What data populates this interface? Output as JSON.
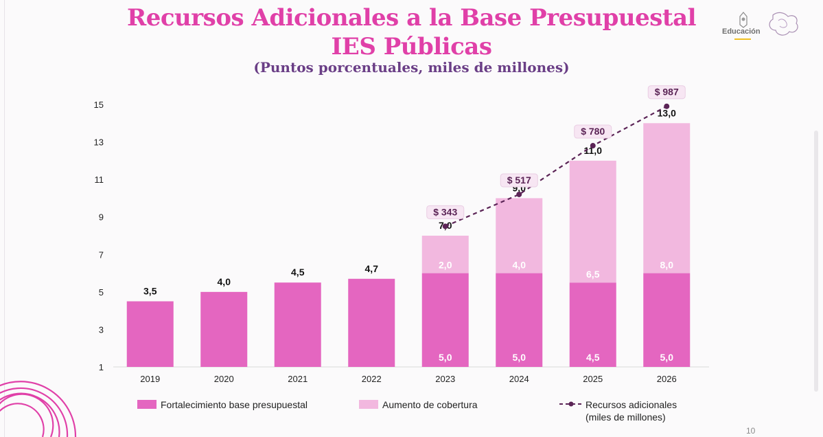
{
  "slide": {
    "title_line1": "Recursos Adicionales a la Base Presupuestal",
    "title_line2": "IES Públicas",
    "subtitle": "(Puntos porcentuales, miles de millones)",
    "logo_label": "Educación",
    "page_number": "10",
    "colors": {
      "title": "#e040a8",
      "subtitle": "#6a3e86",
      "base": "#e466c0",
      "coverage": "#f2b8df",
      "line": "#5b2456"
    }
  },
  "chart_data": {
    "type": "bar",
    "stacked": true,
    "title": "Recursos Adicionales a la Base Presupuestal IES Públicas",
    "subtitle": "(Puntos porcentuales, miles de millones)",
    "categories": [
      "2019",
      "2020",
      "2021",
      "2022",
      "2023",
      "2024",
      "2025",
      "2026"
    ],
    "ylim": [
      1,
      15
    ],
    "yticks": [
      "1",
      "3",
      "5",
      "7",
      "9",
      "11",
      "13",
      "15"
    ],
    "grid": false,
    "series": [
      {
        "name": "Fortalecimiento base presupuestal",
        "values": [
          3.5,
          4.0,
          4.5,
          4.7,
          5.0,
          5.0,
          4.5,
          5.0
        ],
        "inner_labels": [
          null,
          null,
          null,
          null,
          "5,0",
          "5,0",
          "4,5",
          "5,0"
        ]
      },
      {
        "name": "Aumento de cobertura",
        "values": [
          0,
          0,
          0,
          0,
          2.0,
          4.0,
          6.5,
          8.0
        ],
        "inner_labels": [
          null,
          null,
          null,
          null,
          "2,0",
          "4,0",
          "6,5",
          "8,0"
        ]
      }
    ],
    "totals": [
      "3,5",
      "4,0",
      "4,5",
      "4,7",
      "7,0",
      "9,0",
      "11,0",
      "13,0"
    ],
    "line_series": {
      "name": "Recursos adicionales (miles de millones)",
      "legend_line1": "Recursos adicionales",
      "legend_line2": "(miles de millones)",
      "categories": [
        "2023",
        "2024",
        "2025",
        "2026"
      ],
      "values": [
        343,
        517,
        780,
        987
      ],
      "labels": [
        "$ 343",
        "$ 517",
        "$ 780",
        "$ 987"
      ],
      "plotted_on_axis": [
        8.5,
        10.2,
        12.8,
        14.9
      ]
    },
    "legend": [
      {
        "label": "Fortalecimiento base presupuestal"
      },
      {
        "label": "Aumento de cobertura"
      }
    ]
  }
}
